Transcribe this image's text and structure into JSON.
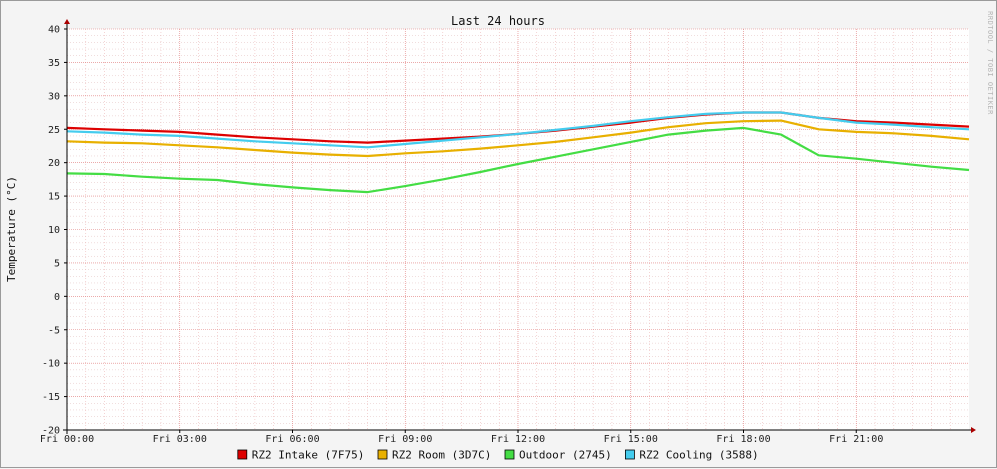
{
  "chart_data": {
    "type": "line",
    "title": "Last 24 hours",
    "ylabel": "Temperature (°C)",
    "ylim": [
      -20,
      40
    ],
    "yticks": [
      -20,
      -15,
      -10,
      -5,
      0,
      5,
      10,
      15,
      20,
      25,
      30,
      35,
      40
    ],
    "xlim": [
      0,
      24
    ],
    "xticks": [
      0,
      3,
      6,
      9,
      12,
      15,
      18,
      21
    ],
    "xtick_labels": [
      "Fri 00:00",
      "Fri 03:00",
      "Fri 06:00",
      "Fri 09:00",
      "Fri 12:00",
      "Fri 15:00",
      "Fri 18:00",
      "Fri 21:00"
    ],
    "grid": true,
    "legend_position": "bottom",
    "x": [
      0,
      1,
      2,
      3,
      4,
      5,
      6,
      7,
      8,
      9,
      10,
      11,
      12,
      13,
      14,
      15,
      16,
      17,
      18,
      19,
      20,
      21,
      22,
      23,
      24
    ],
    "series": [
      {
        "name": "RZ2 Intake (7F75)",
        "color": "#dd0000",
        "values": [
          25.2,
          25.0,
          24.8,
          24.6,
          24.2,
          23.8,
          23.5,
          23.2,
          23.0,
          23.3,
          23.6,
          23.9,
          24.3,
          24.8,
          25.4,
          26.0,
          26.7,
          27.2,
          27.5,
          27.5,
          26.7,
          26.2,
          26.0,
          25.7,
          25.4
        ]
      },
      {
        "name": "RZ2 Room (3D7C)",
        "color": "#e8b000",
        "values": [
          23.2,
          23.0,
          22.9,
          22.6,
          22.3,
          21.9,
          21.5,
          21.2,
          21.0,
          21.4,
          21.7,
          22.1,
          22.6,
          23.1,
          23.8,
          24.5,
          25.3,
          25.9,
          26.2,
          26.3,
          25.0,
          24.6,
          24.4,
          24.0,
          23.5
        ]
      },
      {
        "name": "Outdoor (2745)",
        "color": "#44dd44",
        "values": [
          18.4,
          18.3,
          17.9,
          17.6,
          17.4,
          16.8,
          16.3,
          15.9,
          15.6,
          16.5,
          17.5,
          18.6,
          19.8,
          20.9,
          22.0,
          23.1,
          24.2,
          24.8,
          25.2,
          24.2,
          21.1,
          20.6,
          20.0,
          19.4,
          18.9
        ]
      },
      {
        "name": "RZ2 Cooling (3588)",
        "color": "#44ccee",
        "values": [
          24.7,
          24.5,
          24.2,
          24.0,
          23.6,
          23.2,
          22.9,
          22.6,
          22.3,
          22.8,
          23.3,
          23.8,
          24.3,
          24.9,
          25.5,
          26.2,
          26.8,
          27.3,
          27.5,
          27.5,
          26.7,
          26.0,
          25.7,
          25.3,
          25.0
        ]
      }
    ],
    "watermark": "RRDTOOL / TOBI OETIKER"
  }
}
